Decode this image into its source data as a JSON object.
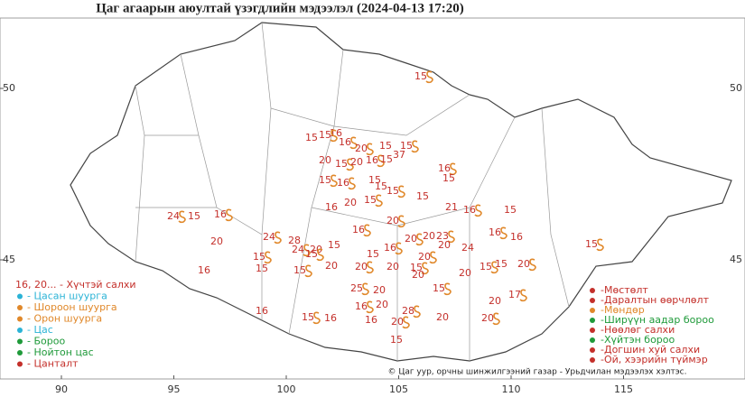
{
  "map": {
    "title": "Цаг агаарын аюултай үзэгдлийн мэдээлэл (2024-04-13 17:20)",
    "lon_ticks": [
      90,
      95,
      100,
      105,
      110,
      115
    ],
    "lat_ticks": [
      50,
      45
    ],
    "wind_color": "#c4302b",
    "wind_labels": [
      15,
      16,
      15,
      15,
      16,
      20,
      15,
      20,
      16,
      15,
      20,
      15,
      15,
      37,
      16,
      15,
      15,
      15,
      16,
      15,
      15,
      15,
      15,
      20,
      16,
      16,
      20,
      21,
      16,
      15,
      24,
      15,
      16,
      20,
      24,
      28,
      24,
      20,
      15,
      15,
      20,
      20,
      23,
      20,
      16,
      15,
      20,
      24,
      16,
      16,
      15,
      16,
      15,
      15,
      15,
      20,
      20,
      20,
      15,
      20,
      15,
      15,
      20,
      20,
      25,
      20,
      15,
      20,
      17,
      20,
      28,
      16,
      15,
      16,
      16,
      16,
      20,
      20,
      20,
      15
    ],
    "legend_left": [
      {
        "text": "16, 20... - Хүчтэй салхи",
        "color": "#c4302b"
      },
      {
        "text": "- Цасан шуурга",
        "color": "#2bb3d6"
      },
      {
        "text": "- Шороон шуурга",
        "color": "#e0882a"
      },
      {
        "text": "- Орон шуурга",
        "color": "#e0882a"
      },
      {
        "text": "- Цас",
        "color": "#2bb3d6"
      },
      {
        "text": "- Бороо",
        "color": "#1f9a3a"
      },
      {
        "text": "- Нойтон цас",
        "color": "#1f9a3a"
      },
      {
        "text": "- Цанталт",
        "color": "#c4302b"
      }
    ],
    "legend_right": [
      {
        "text": "-Мөстөлт",
        "color": "#c4302b"
      },
      {
        "text": "-Даралтын өөрчлөлт",
        "color": "#c4302b"
      },
      {
        "text": "-Мөндөр",
        "color": "#e0882a"
      },
      {
        "text": "-Ширүүн аадар бороо",
        "color": "#1f9a3a"
      },
      {
        "text": "-Нөөлөг салхи",
        "color": "#c4302b"
      },
      {
        "text": "-Хүйтэн бороо",
        "color": "#1f9a3a"
      },
      {
        "text": "-Догшин хуй салхи",
        "color": "#c4302b"
      },
      {
        "text": "-Ой, хээрийн түймэр",
        "color": "#c4302b"
      }
    ],
    "credit": "© Цаг уур, орчны шинжилгээний газар - Урьдчилан мэдээлэх хэлтэс."
  }
}
